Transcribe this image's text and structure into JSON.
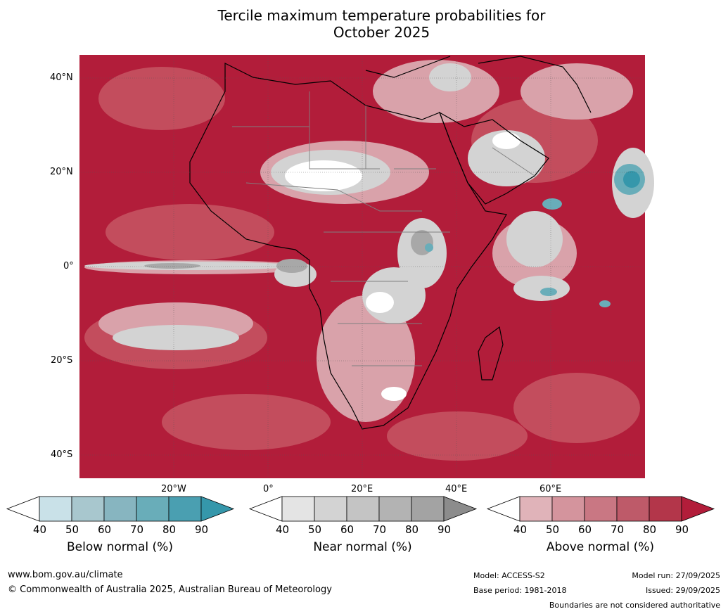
{
  "title": {
    "line1": "Tercile maximum temperature probabilities for",
    "line2": "October 2025"
  },
  "axes": {
    "lat_labels": [
      "40°N",
      "20°N",
      "0°",
      "20°S",
      "40°S"
    ],
    "lon_labels": [
      "20°W",
      "0°",
      "20°E",
      "40°E",
      "60°E"
    ]
  },
  "colorbars": [
    {
      "title": "Below normal (%)",
      "ticks": [
        "40",
        "50",
        "60",
        "70",
        "80",
        "90"
      ],
      "colors": [
        "#ffffff",
        "#c9e1e8",
        "#a8c7ce",
        "#87b5c0",
        "#69adb9",
        "#4a9fb1",
        "#3597ab"
      ]
    },
    {
      "title": "Near normal (%)",
      "ticks": [
        "40",
        "50",
        "60",
        "70",
        "80",
        "90"
      ],
      "colors": [
        "#ffffff",
        "#e4e4e4",
        "#d3d3d3",
        "#c4c4c4",
        "#b3b3b3",
        "#a3a3a3",
        "#8c8c8c"
      ]
    },
    {
      "title": "Above normal (%)",
      "ticks": [
        "40",
        "50",
        "60",
        "70",
        "80",
        "90"
      ],
      "colors": [
        "#ffffff",
        "#e0b3b9",
        "#d4949d",
        "#c97783",
        "#be5a69",
        "#b3364a",
        "#b21d3a"
      ]
    }
  ],
  "footer": {
    "website": "www.bom.gov.au/climate",
    "copyright": "© Commonwealth of Australia 2025, Australian Bureau of Meteorology",
    "model": "Model: ACCESS-S2",
    "base_period": "Base period: 1981-2018",
    "model_run": "Model run: 27/09/2025",
    "issued": "Issued: 29/09/2025",
    "disclaimer": "Boundaries are not considered authoritative"
  }
}
